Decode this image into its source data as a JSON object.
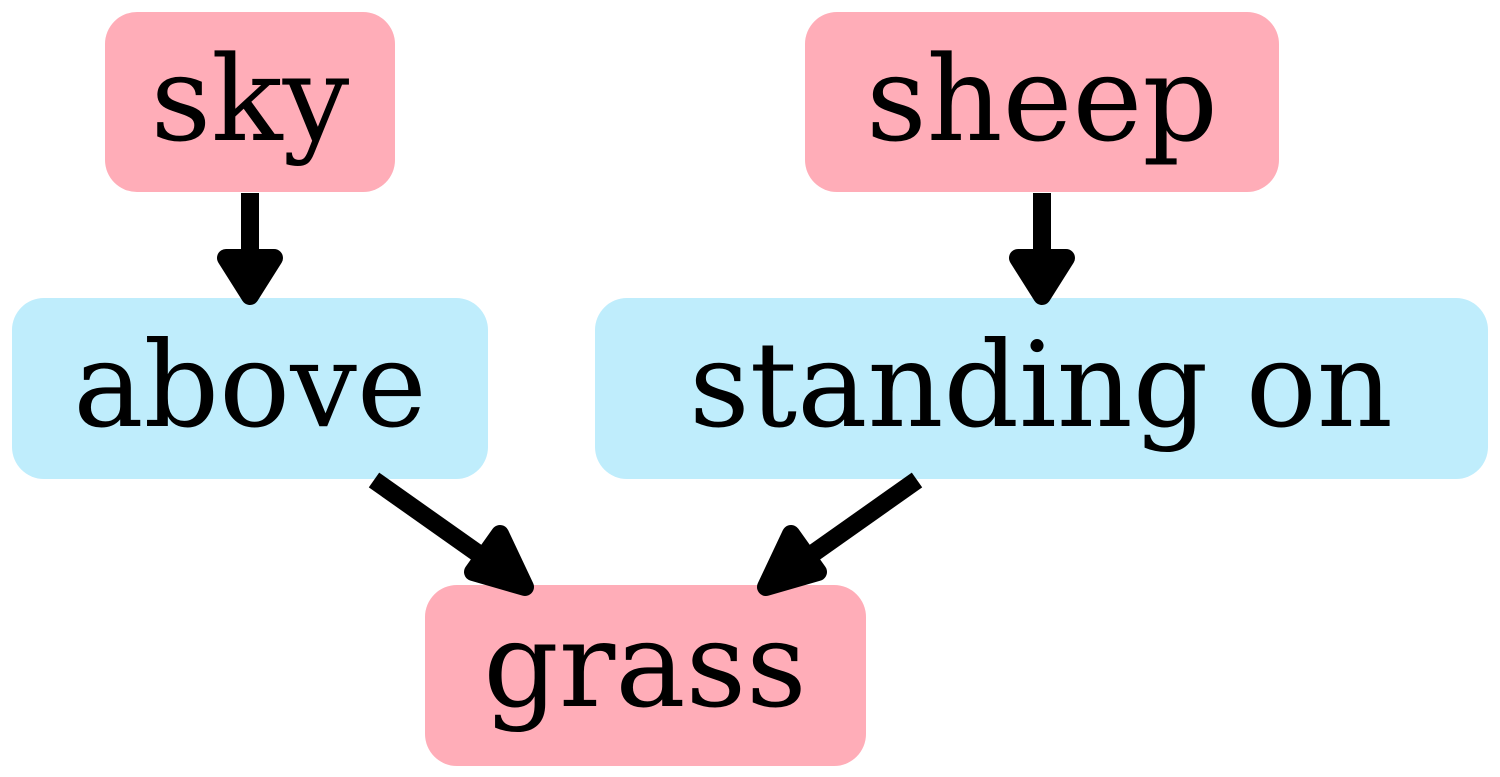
{
  "colors": {
    "object_node": "#ffadb8",
    "relation_node": "#bfedfc",
    "edge": "#000000",
    "text": "#000000"
  },
  "nodes": {
    "sky": {
      "label": "sky",
      "kind": "object"
    },
    "sheep": {
      "label": "sheep",
      "kind": "object"
    },
    "above": {
      "label": "above",
      "kind": "relation"
    },
    "standing_on": {
      "label": "standing on",
      "kind": "relation"
    },
    "grass": {
      "label": "grass",
      "kind": "object"
    }
  },
  "edges": [
    {
      "from": "sky",
      "to": "above"
    },
    {
      "from": "sheep",
      "to": "standing_on"
    },
    {
      "from": "above",
      "to": "grass"
    },
    {
      "from": "standing_on",
      "to": "grass"
    }
  ]
}
